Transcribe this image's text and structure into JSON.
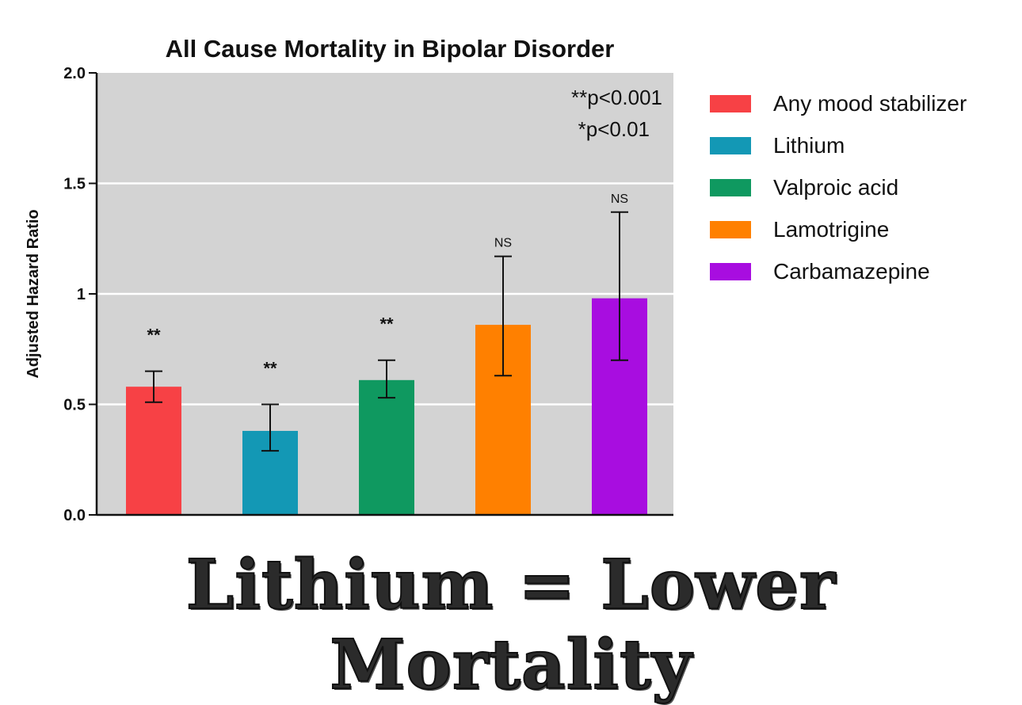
{
  "chart_data": {
    "type": "bar",
    "title": "All Cause Mortality in Bipolar Disorder",
    "xlabel": "",
    "ylabel": "Adjusted Hazard Ratio",
    "ylim": [
      0,
      2.0
    ],
    "yticks": [
      "0.0",
      "0.5",
      "1",
      "1.5",
      "2.0"
    ],
    "ytick_values": [
      0,
      0.5,
      1,
      1.5,
      2.0
    ],
    "grid": "horizontal",
    "background": "#d3d3d3",
    "legend_position": "right",
    "categories": [
      "Any mood stabilizer",
      "Lithium",
      "Valproic acid",
      "Lamotrigine",
      "Carbamazepine"
    ],
    "values": [
      0.58,
      0.38,
      0.61,
      0.86,
      0.98
    ],
    "error_low": [
      0.51,
      0.29,
      0.53,
      0.63,
      0.7
    ],
    "error_high": [
      0.65,
      0.5,
      0.7,
      1.17,
      1.37
    ],
    "significance": [
      "**",
      "**",
      "**",
      "NS",
      "NS"
    ],
    "colors": [
      "#f74145",
      "#1398b5",
      "#0f9960",
      "#ff8000",
      "#a80de0"
    ],
    "annotations": [
      "**p<0.001",
      "*p<0.01"
    ]
  },
  "headline": "Lithium = Lower Mortality"
}
